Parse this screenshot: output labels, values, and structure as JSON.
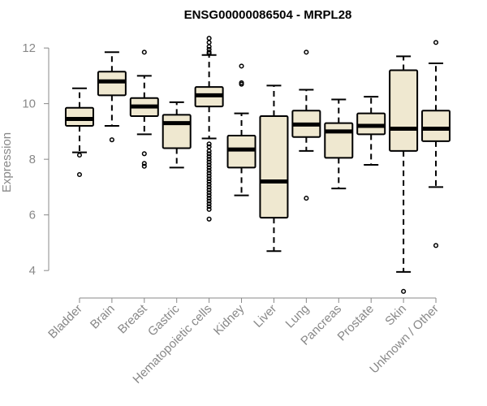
{
  "chart_data": {
    "type": "boxplot",
    "title": "ENSG00000086504 - MRPL28",
    "ylabel": "Expression",
    "xlabel": "",
    "ylim": [
      3.1,
      12.5
    ],
    "yticks": [
      4,
      6,
      8,
      10,
      12
    ],
    "colors": {
      "box_fill": "#efe8d0",
      "stroke": "#000000",
      "axis_text": "#888888"
    },
    "categories": [
      "Bladder",
      "Brain",
      "Breast",
      "Gastric",
      "Hematopoietic cells",
      "Kidney",
      "Liver",
      "Lung",
      "Pancreas",
      "Prostate",
      "Skin",
      "Unknown / Other"
    ],
    "boxes": [
      {
        "category": "Bladder",
        "whisker_low": 8.25,
        "q1": 9.2,
        "median": 9.45,
        "q3": 9.85,
        "whisker_high": 10.55,
        "outliers": [
          8.15,
          7.45
        ]
      },
      {
        "category": "Brain",
        "whisker_low": 9.2,
        "q1": 10.3,
        "median": 10.8,
        "q3": 11.15,
        "whisker_high": 11.85,
        "outliers": [
          8.7
        ]
      },
      {
        "category": "Breast",
        "whisker_low": 8.9,
        "q1": 9.55,
        "median": 9.9,
        "q3": 10.2,
        "whisker_high": 11.0,
        "outliers": [
          11.85,
          8.2,
          7.85,
          7.75
        ]
      },
      {
        "category": "Gastric",
        "whisker_low": 7.7,
        "q1": 8.4,
        "median": 9.3,
        "q3": 9.6,
        "whisker_high": 10.05,
        "outliers": []
      },
      {
        "category": "Hematopoietic cells",
        "whisker_low": 8.75,
        "q1": 9.9,
        "median": 10.3,
        "q3": 10.6,
        "whisker_high": 11.75,
        "outliers": [
          12.35,
          12.2,
          12.05,
          11.95,
          11.85,
          11.8,
          8.55,
          8.45,
          8.3,
          8.2,
          8.1,
          8.0,
          7.9,
          7.8,
          7.7,
          7.6,
          7.5,
          7.4,
          7.3,
          7.2,
          7.1,
          7.0,
          6.9,
          6.8,
          6.7,
          6.6,
          6.5,
          6.4,
          6.3,
          6.2,
          5.85
        ]
      },
      {
        "category": "Kidney",
        "whisker_low": 6.7,
        "q1": 7.7,
        "median": 8.35,
        "q3": 8.85,
        "whisker_high": 9.65,
        "outliers": [
          11.35,
          10.75,
          10.7
        ]
      },
      {
        "category": "Liver",
        "whisker_low": 4.7,
        "q1": 5.9,
        "median": 7.2,
        "q3": 9.55,
        "whisker_high": 10.65,
        "outliers": []
      },
      {
        "category": "Lung",
        "whisker_low": 8.3,
        "q1": 8.8,
        "median": 9.25,
        "q3": 9.75,
        "whisker_high": 10.5,
        "outliers": [
          11.85,
          6.6
        ]
      },
      {
        "category": "Pancreas",
        "whisker_low": 6.95,
        "q1": 8.05,
        "median": 9.0,
        "q3": 9.3,
        "whisker_high": 10.15,
        "outliers": []
      },
      {
        "category": "Prostate",
        "whisker_low": 7.8,
        "q1": 8.9,
        "median": 9.2,
        "q3": 9.65,
        "whisker_high": 10.25,
        "outliers": []
      },
      {
        "category": "Skin",
        "whisker_low": 3.95,
        "q1": 8.3,
        "median": 9.1,
        "q3": 11.2,
        "whisker_high": 11.7,
        "outliers": [
          3.25
        ]
      },
      {
        "category": "Unknown / Other",
        "whisker_low": 7.0,
        "q1": 8.65,
        "median": 9.1,
        "q3": 9.75,
        "whisker_high": 11.45,
        "outliers": [
          12.2,
          4.9
        ]
      }
    ]
  }
}
